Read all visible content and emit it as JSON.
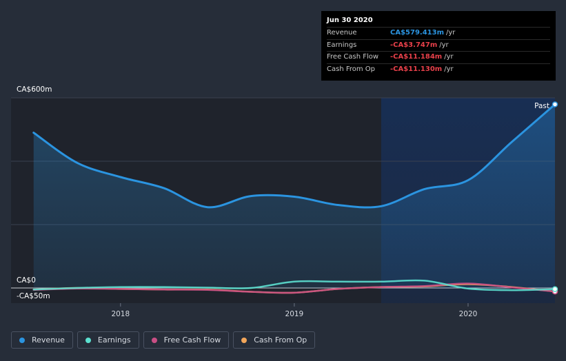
{
  "tooltip": {
    "date": "Jun 30 2020",
    "rows": [
      {
        "label": "Revenue",
        "value": "CA$579.413m",
        "unit": "/yr",
        "color": "#2b94e0"
      },
      {
        "label": "Earnings",
        "value": "-CA$3.747m",
        "unit": "/yr",
        "color": "#e8404a"
      },
      {
        "label": "Free Cash Flow",
        "value": "-CA$11.184m",
        "unit": "/yr",
        "color": "#e8404a"
      },
      {
        "label": "Cash From Op",
        "value": "-CA$11.130m",
        "unit": "/yr",
        "color": "#e8404a"
      }
    ]
  },
  "past_label": "Past",
  "legend": [
    {
      "label": "Revenue",
      "color": "#2b94e0"
    },
    {
      "label": "Earnings",
      "color": "#5ce0d0"
    },
    {
      "label": "Free Cash Flow",
      "color": "#c94f85"
    },
    {
      "label": "Cash From Op",
      "color": "#f2a65a"
    }
  ],
  "chart_data": {
    "type": "line",
    "y_unit_labels": {
      "top": "CA$600m",
      "zero": "CA$0",
      "bottom": "-CA$50m"
    },
    "ylim": [
      -50,
      600
    ],
    "x_ticks": [
      {
        "label": "2018",
        "value": 2018.0
      },
      {
        "label": "2019",
        "value": 2019.0
      },
      {
        "label": "2020",
        "value": 2020.0
      }
    ],
    "xlim": [
      2017.37,
      2020.5
    ],
    "past_region_start": 2019.5,
    "series": [
      {
        "name": "Revenue",
        "color": "#2b94e0",
        "filled": true,
        "x": [
          2017.5,
          2017.75,
          2018.0,
          2018.25,
          2018.5,
          2018.75,
          2019.0,
          2019.25,
          2019.5,
          2019.75,
          2020.0,
          2020.25,
          2020.5
        ],
        "values": [
          490,
          395,
          350,
          315,
          255,
          290,
          288,
          262,
          258,
          312,
          340,
          460,
          579.413
        ]
      },
      {
        "name": "Earnings",
        "color": "#5ce0d0",
        "filled": false,
        "x": [
          2017.5,
          2017.75,
          2018.0,
          2018.25,
          2018.5,
          2018.75,
          2019.0,
          2019.25,
          2019.5,
          2019.75,
          2020.0,
          2020.25,
          2020.5
        ],
        "values": [
          -5,
          0,
          3,
          3,
          1,
          0,
          20,
          20,
          20,
          23,
          -2,
          -7,
          -3.747
        ]
      },
      {
        "name": "Free Cash Flow",
        "color": "#c94f85",
        "filled": false,
        "x": [
          2017.5,
          2017.75,
          2018.0,
          2018.25,
          2018.5,
          2018.75,
          2019.0,
          2019.25,
          2019.5,
          2019.75,
          2020.0,
          2020.25,
          2020.5
        ],
        "values": [
          -6,
          -2,
          -3,
          -5,
          -6,
          -12,
          -15,
          -3,
          3,
          6,
          14,
          2,
          -11.184
        ]
      },
      {
        "name": "Cash From Op",
        "color": "#f2a65a",
        "filled": false,
        "x": [
          2017.5,
          2017.75,
          2018.0,
          2018.25,
          2018.5,
          2018.75,
          2019.0,
          2019.25,
          2019.5,
          2019.75,
          2020.0,
          2020.25,
          2020.5
        ],
        "values": [
          -5,
          0,
          -3,
          -5,
          -5,
          -12,
          -15,
          -3,
          3,
          5,
          12,
          3,
          -11.13
        ]
      }
    ]
  }
}
